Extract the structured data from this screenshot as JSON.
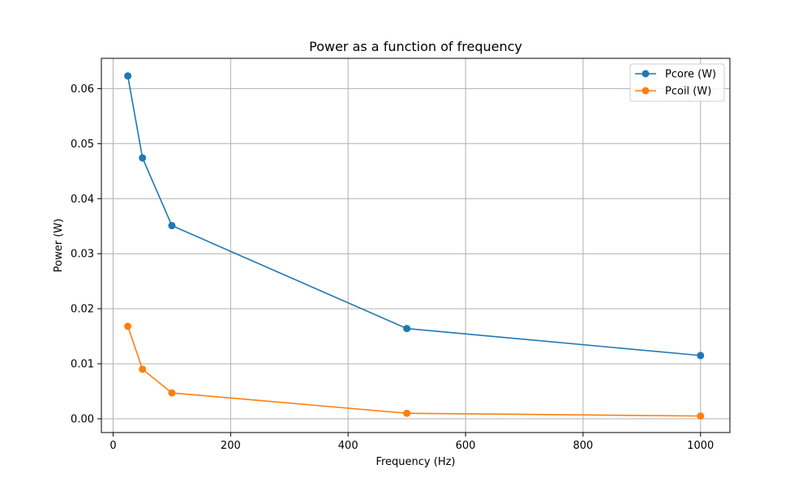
{
  "chart_data": {
    "type": "line",
    "title": "Power as a function of frequency",
    "xlabel": "Frequency (Hz)",
    "ylabel": "Power (W)",
    "xlim": [
      -20,
      1050
    ],
    "ylim": [
      -0.0025,
      0.0655
    ],
    "x_ticks": [
      0,
      200,
      400,
      600,
      800,
      1000
    ],
    "x_tick_labels": [
      "0",
      "200",
      "400",
      "600",
      "800",
      "1000"
    ],
    "y_ticks": [
      0.0,
      0.01,
      0.02,
      0.03,
      0.04,
      0.05,
      0.06
    ],
    "y_tick_labels": [
      "0.00",
      "0.01",
      "0.02",
      "0.03",
      "0.04",
      "0.05",
      "0.06"
    ],
    "grid": true,
    "legend_position": "top-right",
    "x": [
      25,
      50,
      100,
      500,
      1000
    ],
    "series": [
      {
        "name": "Pcore (W)",
        "color": "#1f77b4",
        "values": [
          0.0623,
          0.0474,
          0.0351,
          0.0164,
          0.0115
        ]
      },
      {
        "name": "Pcoil (W)",
        "color": "#ff7f0e",
        "values": [
          0.0168,
          0.009,
          0.0047,
          0.001,
          0.0005
        ]
      }
    ]
  }
}
